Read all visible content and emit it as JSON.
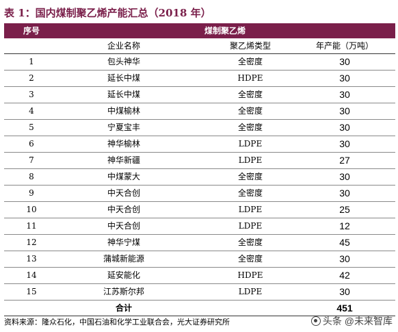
{
  "title": "表 1：国内煤制聚乙烯产能汇总（2018 年）",
  "header": {
    "col_no": "序号",
    "group": "煤制聚乙烯"
  },
  "subheader": {
    "company": "企业名称",
    "type": "聚乙烯类型",
    "capacity": "年产能（万吨）"
  },
  "rows": [
    {
      "no": "1",
      "company": "包头神华",
      "type": "全密度",
      "capacity": "30"
    },
    {
      "no": "2",
      "company": "延长中煤",
      "type": "HDPE",
      "capacity": "30"
    },
    {
      "no": "3",
      "company": "延长中煤",
      "type": "全密度",
      "capacity": "30"
    },
    {
      "no": "4",
      "company": "中煤榆林",
      "type": "全密度",
      "capacity": "30"
    },
    {
      "no": "5",
      "company": "宁夏宝丰",
      "type": "全密度",
      "capacity": "30"
    },
    {
      "no": "6",
      "company": "神华榆林",
      "type": "LDPE",
      "capacity": "30"
    },
    {
      "no": "7",
      "company": "神华新疆",
      "type": "LDPE",
      "capacity": "27"
    },
    {
      "no": "8",
      "company": "中煤蒙大",
      "type": "全密度",
      "capacity": "30"
    },
    {
      "no": "9",
      "company": "中天合创",
      "type": "全密度",
      "capacity": "30"
    },
    {
      "no": "10",
      "company": "中天合创",
      "type": "LDPE",
      "capacity": "25"
    },
    {
      "no": "11",
      "company": "中天合创",
      "type": "LDPE",
      "capacity": "12"
    },
    {
      "no": "12",
      "company": "神华宁煤",
      "type": "全密度",
      "capacity": "45"
    },
    {
      "no": "13",
      "company": "蒲城新能源",
      "type": "全密度",
      "capacity": "30"
    },
    {
      "no": "14",
      "company": "延安能化",
      "type": "HDPE",
      "capacity": "42"
    },
    {
      "no": "15",
      "company": "江苏斯尔邦",
      "type": "LDPE",
      "capacity": "30"
    }
  ],
  "total": {
    "label": "合计",
    "value": "451"
  },
  "source": "资料来源：隆众石化，中国石油和化学工业联合会，光大证券研究所",
  "watermark": "头条 @未来智库",
  "colors": {
    "accent": "#7a1f4a"
  }
}
